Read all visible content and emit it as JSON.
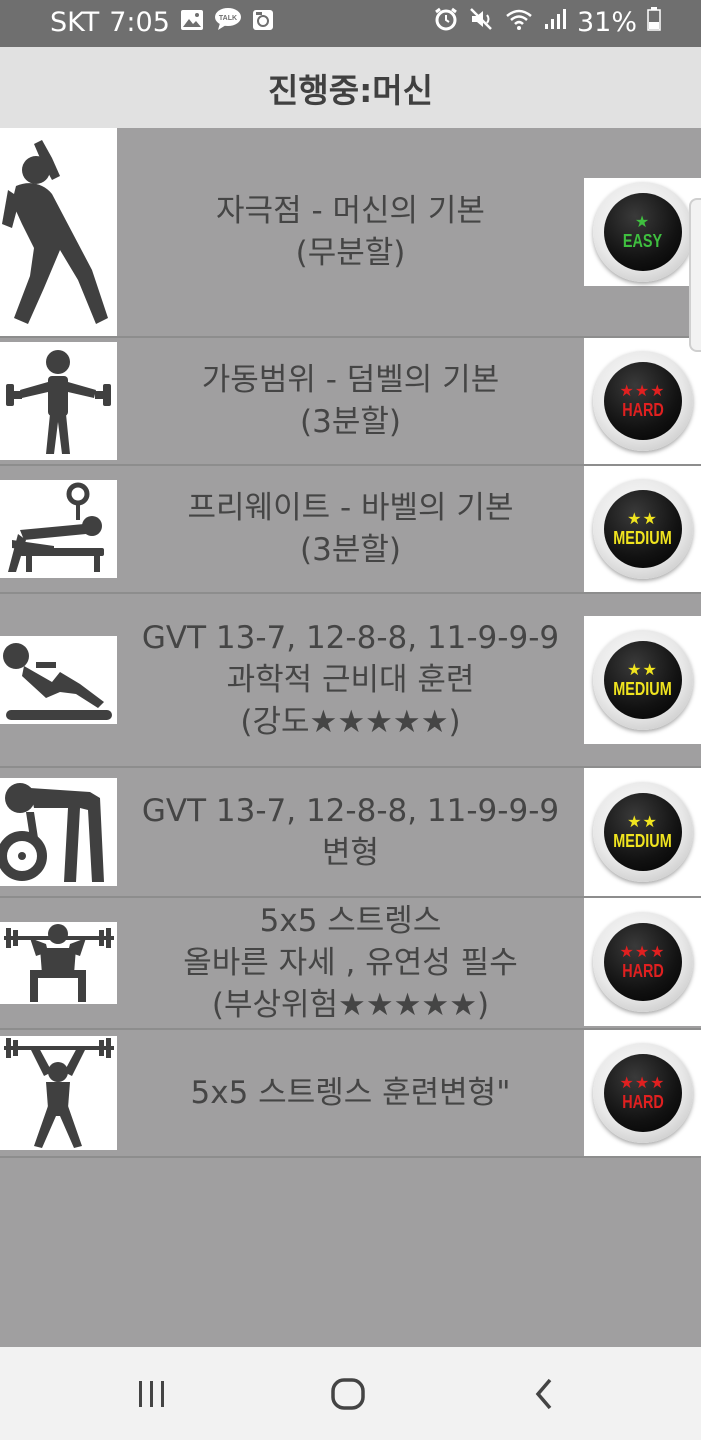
{
  "status_bar": {
    "carrier": "SKT",
    "time": "7:05",
    "battery": "31%",
    "icons_left": [
      "gallery-icon",
      "talk-icon",
      "media-icon"
    ],
    "icons_right": [
      "alarm-icon",
      "mute-icon",
      "wifi-icon",
      "signal-icon",
      "battery-icon"
    ]
  },
  "header": {
    "title": "진행중:머신"
  },
  "workouts": [
    {
      "lines": [
        "자극점 - 머신의 기본",
        "(무분할)"
      ],
      "icon": "stretch-person-icon",
      "difficulty": {
        "stars": "★",
        "label": "EASY",
        "color": "#3fbf3f"
      }
    },
    {
      "lines": [
        "가동범위 - 덤벨의 기본",
        "(3분할)"
      ],
      "icon": "dumbbell-person-icon",
      "difficulty": {
        "stars": "★★★",
        "label": "HARD",
        "color": "#e02020"
      }
    },
    {
      "lines": [
        "프리웨이트 - 바벨의 기본",
        "(3분할)"
      ],
      "icon": "bench-press-icon",
      "difficulty": {
        "stars": "★★",
        "label": "MEDIUM",
        "color": "#f0e41f"
      }
    },
    {
      "lines": [
        "GVT 13-7, 12-8-8, 11-9-9-9",
        "과학적 근비대 훈련",
        "(강도★★★★★)"
      ],
      "icon": "situp-icon",
      "difficulty": {
        "stars": "★★",
        "label": "MEDIUM",
        "color": "#f0e41f"
      }
    },
    {
      "lines": [
        "GVT 13-7, 12-8-8, 11-9-9-9",
        "변형"
      ],
      "icon": "deadlift-icon",
      "difficulty": {
        "stars": "★★",
        "label": "MEDIUM",
        "color": "#f0e41f"
      }
    },
    {
      "lines": [
        "5x5 스트렝스",
        "올바른 자세 , 유연성 필수",
        "(부상위험★★★★★)"
      ],
      "icon": "squat-barbell-icon",
      "difficulty": {
        "stars": "★★★",
        "label": "HARD",
        "color": "#e02020"
      }
    },
    {
      "lines": [
        "5x5 스트렝스 훈련변형\""
      ],
      "icon": "overhead-press-icon",
      "difficulty": {
        "stars": "★★★",
        "label": "HARD",
        "color": "#e02020"
      }
    }
  ],
  "nav": {
    "icons": [
      "recent-apps-icon",
      "home-icon",
      "back-icon"
    ]
  }
}
